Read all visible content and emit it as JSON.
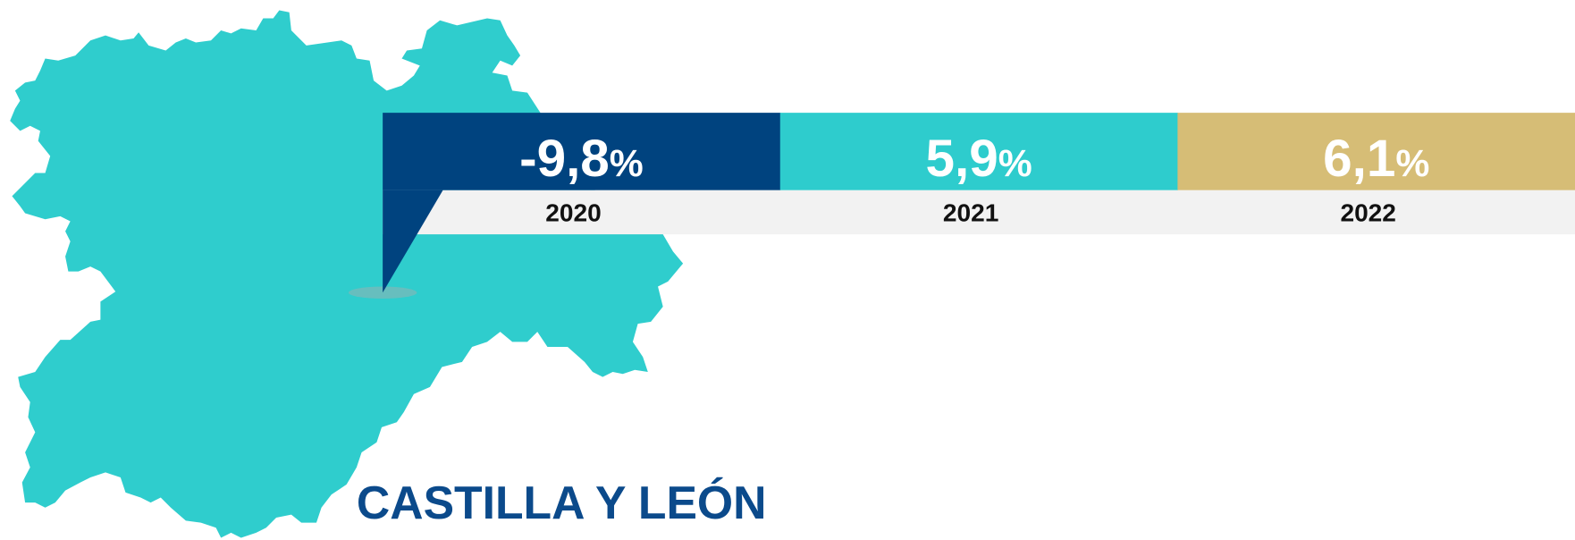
{
  "title": "CASTILLA Y LEÓN",
  "panels": [
    {
      "value": "-9,8",
      "unit": "%",
      "year": "2020",
      "color": "#00437f"
    },
    {
      "value": "5,9",
      "unit": "%",
      "year": "2021",
      "color": "#2ecccd"
    },
    {
      "value": "6,1",
      "unit": "%",
      "year": "2022",
      "color": "#d6bd76"
    }
  ]
}
